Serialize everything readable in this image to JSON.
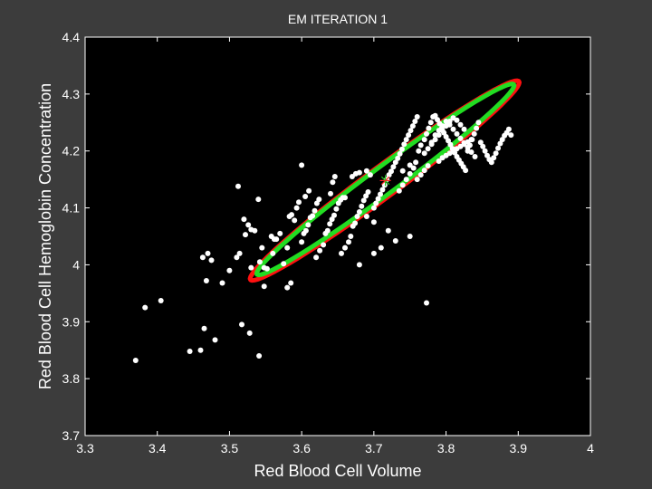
{
  "chart_data": {
    "type": "scatter",
    "title": "EM ITERATION 1",
    "xlabel": "Red Blood Cell Volume",
    "ylabel": "Red Blood Cell Hemoglobin Concentration",
    "xlim": [
      3.3,
      4.0
    ],
    "ylim": [
      3.7,
      4.4
    ],
    "xticks": [
      "3.3",
      "3.4",
      "3.5",
      "3.6",
      "3.7",
      "3.8",
      "3.9",
      "4"
    ],
    "yticks": [
      "3.7",
      "3.8",
      "3.9",
      "4",
      "4.1",
      "4.2",
      "4.3",
      "4.4"
    ],
    "grid": false,
    "legend": "none",
    "colors": {
      "figure_background": "#3c3c3c",
      "axes_background": "#000000",
      "points": "#ffffff",
      "contour_outer": "#ff1010",
      "contour_inner": "#22dd22",
      "mean_marker_1": "#ff2222",
      "mean_marker_2": "#22cc22"
    },
    "mean_marker": {
      "x": 3.716,
      "y": 4.148,
      "marker": "asterisk"
    },
    "contours": [
      {
        "name": "",
        "color": "#ff1010",
        "center": [
          3.715,
          4.148
        ],
        "major_slope": 0.94,
        "semi_axes": [
          0.255,
          0.024
        ],
        "tilt_deg": 43.2
      },
      {
        "name": "",
        "color": "#22dd22",
        "center": [
          3.716,
          4.15
        ],
        "major_slope": 0.94,
        "semi_axes": [
          0.244,
          0.0215
        ],
        "tilt_deg": 43.2
      }
    ],
    "series": [
      {
        "name": "",
        "x": [
          3.37,
          3.383,
          3.405,
          3.445,
          3.46,
          3.465,
          3.463,
          3.475,
          3.47,
          3.468,
          3.49,
          3.48,
          3.517,
          3.528,
          3.541,
          3.512,
          3.5,
          3.51,
          3.514,
          3.522,
          3.526,
          3.52,
          3.54,
          3.53,
          3.545,
          3.548,
          3.552,
          3.535,
          3.53,
          3.56,
          3.565,
          3.57,
          3.575,
          3.542,
          3.548,
          3.558,
          3.562,
          3.58,
          3.583,
          3.586,
          3.59,
          3.593,
          3.596,
          3.58,
          3.585,
          3.6,
          3.603,
          3.606,
          3.609,
          3.612,
          3.615,
          3.618,
          3.621,
          3.624,
          3.6,
          3.605,
          3.61,
          3.62,
          3.625,
          3.63,
          3.633,
          3.636,
          3.639,
          3.642,
          3.645,
          3.648,
          3.651,
          3.654,
          3.657,
          3.64,
          3.643,
          3.646,
          3.655,
          3.66,
          3.665,
          3.668,
          3.671,
          3.674,
          3.677,
          3.68,
          3.683,
          3.686,
          3.689,
          3.692,
          3.67,
          3.675,
          3.68,
          3.69,
          3.695,
          3.7,
          3.703,
          3.706,
          3.709,
          3.712,
          3.715,
          3.718,
          3.721,
          3.724,
          3.727,
          3.73,
          3.733,
          3.736,
          3.739,
          3.742,
          3.745,
          3.748,
          3.751,
          3.754,
          3.757,
          3.76,
          3.735,
          3.74,
          3.745,
          3.75,
          3.755,
          3.758,
          3.762,
          3.765,
          3.77,
          3.773,
          3.776,
          3.779,
          3.782,
          3.785,
          3.788,
          3.791,
          3.794,
          3.797,
          3.8,
          3.803,
          3.806,
          3.809,
          3.812,
          3.815,
          3.818,
          3.821,
          3.824,
          3.827,
          3.83,
          3.833,
          3.836,
          3.839,
          3.842,
          3.845,
          3.848,
          3.851,
          3.854,
          3.857,
          3.86,
          3.863,
          3.866,
          3.869,
          3.872,
          3.875,
          3.878,
          3.881,
          3.884,
          3.887,
          3.89,
          3.78,
          3.785,
          3.79,
          3.795,
          3.8,
          3.805,
          3.81,
          3.815,
          3.82,
          3.825,
          3.83,
          3.835,
          3.84,
          3.76,
          3.765,
          3.77,
          3.775,
          3.79,
          3.795,
          3.8,
          3.805,
          3.81,
          3.815,
          3.82,
          3.825,
          3.83,
          3.835,
          3.77,
          3.775,
          3.78,
          3.785,
          3.79,
          3.795,
          3.8,
          3.805,
          3.81,
          3.815,
          3.82,
          3.825,
          3.66,
          3.69,
          3.7,
          3.72,
          3.71,
          3.73,
          3.75,
          3.68,
          3.7,
          3.74,
          3.75,
          3.773
        ],
        "y": [
          3.832,
          3.925,
          3.937,
          3.848,
          3.85,
          3.888,
          4.013,
          4.008,
          4.02,
          3.972,
          3.968,
          3.868,
          3.895,
          3.88,
          3.84,
          4.138,
          3.99,
          4.013,
          4.02,
          4.053,
          4.07,
          4.08,
          4.115,
          3.995,
          4.03,
          3.995,
          3.993,
          4.06,
          4.062,
          4.02,
          4.045,
          4.055,
          4.002,
          4.005,
          3.962,
          4.05,
          4.045,
          4.03,
          4.085,
          4.088,
          4.078,
          4.1,
          4.11,
          3.96,
          3.968,
          4.04,
          4.055,
          4.06,
          4.07,
          4.083,
          4.086,
          4.095,
          4.108,
          4.115,
          4.175,
          4.12,
          4.13,
          4.013,
          4.025,
          4.035,
          4.055,
          4.06,
          4.072,
          4.08,
          4.087,
          4.098,
          4.108,
          4.114,
          4.118,
          4.125,
          4.145,
          4.155,
          4.02,
          4.03,
          4.04,
          4.05,
          4.068,
          4.073,
          4.085,
          4.093,
          4.103,
          4.113,
          4.121,
          4.128,
          4.155,
          4.16,
          4.162,
          4.165,
          4.158,
          4.1,
          4.108,
          4.116,
          4.124,
          4.132,
          4.14,
          4.15,
          4.158,
          4.164,
          4.172,
          4.18,
          4.187,
          4.195,
          4.203,
          4.212,
          4.22,
          4.228,
          4.236,
          4.244,
          4.252,
          4.26,
          4.13,
          4.14,
          4.15,
          4.16,
          4.17,
          4.18,
          4.2,
          4.21,
          4.22,
          4.23,
          4.24,
          4.25,
          4.26,
          4.262,
          4.255,
          4.248,
          4.24,
          4.232,
          4.225,
          4.218,
          4.211,
          4.204,
          4.197,
          4.19,
          4.184,
          4.178,
          4.172,
          4.166,
          4.2,
          4.21,
          4.22,
          4.23,
          4.24,
          4.25,
          4.215,
          4.208,
          4.2,
          4.192,
          4.185,
          4.18,
          4.188,
          4.196,
          4.205,
          4.213,
          4.22,
          4.227,
          4.232,
          4.238,
          4.228,
          4.215,
          4.228,
          4.236,
          4.244,
          4.252,
          4.246,
          4.238,
          4.23,
          4.222,
          4.214,
          4.206,
          4.198,
          4.19,
          4.15,
          4.158,
          4.166,
          4.174,
          4.182,
          4.188,
          4.192,
          4.196,
          4.2,
          4.204,
          4.208,
          4.212,
          4.216,
          4.22,
          4.196,
          4.204,
          4.212,
          4.22,
          4.228,
          4.236,
          4.244,
          4.252,
          4.258,
          4.254,
          4.246,
          4.238,
          4.118,
          4.085,
          4.075,
          4.06,
          4.03,
          4.042,
          4.05,
          4.0,
          4.02,
          4.165,
          4.175,
          3.933
        ]
      }
    ]
  }
}
